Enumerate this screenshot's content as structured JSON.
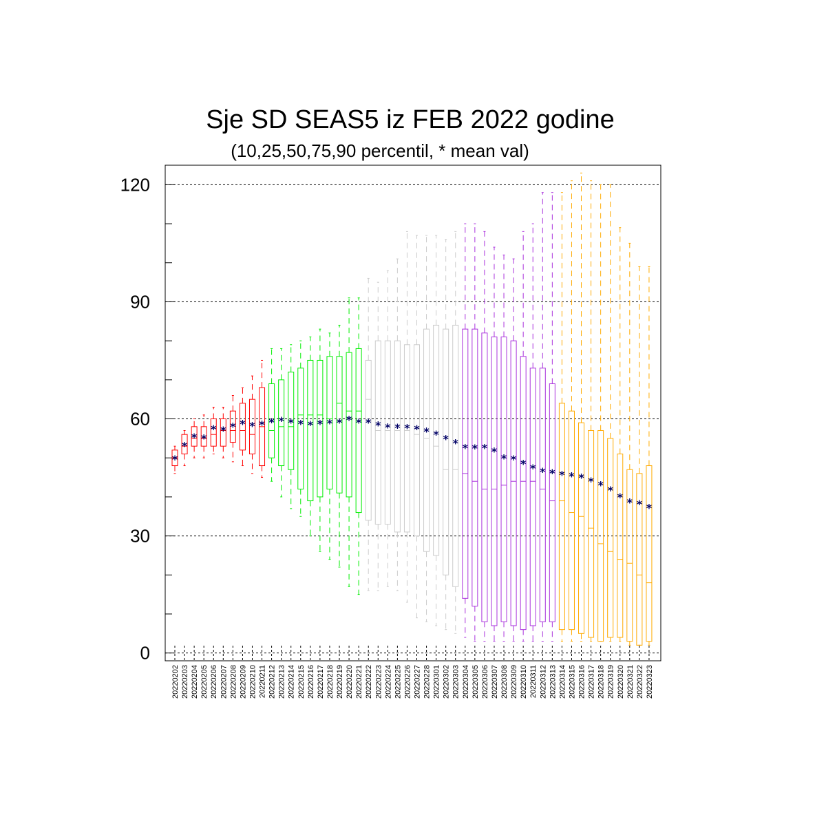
{
  "chart_data": {
    "type": "boxplot",
    "title": "Sje SD SEAS5 iz FEB 2022 godine",
    "subtitle": "(10,25,50,75,90 percentil, * mean val)",
    "xlabel": "",
    "ylabel": "",
    "ylim": [
      -2,
      125
    ],
    "yticks": [
      0,
      30,
      60,
      90,
      120
    ],
    "grid": "horizontal dashed at y ticks",
    "mean_marker_color": "#000066",
    "series_colors": [
      "#ff0000",
      "#00ee00",
      "#cccccc",
      "#aa33dd",
      "#ffaa00"
    ],
    "categories": [
      "20220202",
      "20220203",
      "20220204",
      "20220205",
      "20220206",
      "20220207",
      "20220208",
      "20220209",
      "20220210",
      "20220211",
      "20220212",
      "20220213",
      "20220214",
      "20220215",
      "20220216",
      "20220217",
      "20220218",
      "20220219",
      "20220220",
      "20220221",
      "20220222",
      "20220223",
      "20220224",
      "20220225",
      "20220226",
      "20220227",
      "20220228",
      "20220301",
      "20220302",
      "20220303",
      "20220304",
      "20220305",
      "20220306",
      "20220307",
      "20220308",
      "20220309",
      "20220310",
      "20220311",
      "20220312",
      "20220313",
      "20220314",
      "20220315",
      "20220316",
      "20220317",
      "20220318",
      "20220319",
      "20220320",
      "20220321",
      "20220322",
      "20220323"
    ],
    "color_index": [
      0,
      0,
      0,
      0,
      0,
      0,
      0,
      0,
      0,
      0,
      1,
      1,
      1,
      1,
      1,
      1,
      1,
      1,
      1,
      1,
      2,
      2,
      2,
      2,
      2,
      2,
      2,
      2,
      2,
      2,
      3,
      3,
      3,
      3,
      3,
      3,
      3,
      3,
      3,
      3,
      4,
      4,
      4,
      4,
      4,
      4,
      4,
      4,
      4,
      4
    ],
    "p10": [
      46,
      48,
      50,
      50,
      51,
      50,
      49,
      48,
      46,
      45,
      44,
      40,
      37,
      35,
      30,
      26,
      24,
      22,
      17,
      15,
      16,
      16,
      17,
      16,
      13,
      9,
      8,
      7,
      6,
      5,
      4,
      3,
      3,
      3,
      3,
      3,
      3,
      3,
      3,
      3,
      3,
      3,
      3,
      3,
      3,
      3,
      3,
      2,
      2,
      2
    ],
    "p25": [
      48,
      51,
      53,
      53,
      53,
      53,
      54,
      52,
      51,
      48,
      50,
      48,
      47,
      42,
      39,
      40,
      42,
      41,
      40,
      36,
      34,
      33,
      33,
      31,
      31,
      30,
      26,
      25,
      20,
      17,
      14,
      12,
      8,
      7,
      8,
      7,
      6,
      7,
      8,
      8,
      6,
      6,
      5,
      4,
      3,
      4,
      4,
      3,
      2,
      3
    ],
    "p50": [
      50,
      53,
      55,
      55,
      56,
      57,
      57,
      57,
      56,
      58,
      57,
      58,
      58,
      61,
      61,
      61,
      60,
      64,
      62,
      62,
      65,
      57,
      57,
      57,
      57,
      56,
      55,
      53,
      47,
      47,
      46,
      44,
      42,
      42,
      43,
      44,
      44,
      44,
      42,
      39,
      39,
      36,
      35,
      32,
      28,
      26,
      24,
      23,
      20,
      18
    ],
    "p75": [
      52,
      56,
      58,
      58,
      60,
      60,
      62,
      64,
      65,
      68,
      69,
      70,
      72,
      73,
      75,
      75,
      76,
      76,
      77,
      78,
      75,
      80,
      80,
      80,
      79,
      79,
      83,
      84,
      83,
      84,
      83,
      83,
      82,
      81,
      81,
      80,
      76,
      73,
      73,
      69,
      64,
      62,
      59,
      57,
      57,
      55,
      51,
      47,
      46,
      48
    ],
    "p90": [
      53,
      57,
      60,
      61,
      63,
      63,
      66,
      68,
      71,
      75,
      78,
      78,
      79,
      80,
      81,
      83,
      82,
      84,
      91,
      91,
      96,
      95,
      98,
      101,
      108,
      107,
      107,
      107,
      106,
      108,
      110,
      110,
      108,
      104,
      102,
      101,
      108,
      110,
      118,
      118,
      118,
      121,
      123,
      121,
      120,
      120,
      109,
      105,
      99,
      99
    ],
    "mean": [
      49.9,
      53.3,
      55.5,
      55.2,
      57.6,
      57.3,
      58.2,
      58.9,
      58.4,
      58.8,
      59.4,
      59.7,
      59.3,
      58.9,
      58.7,
      58.9,
      59.1,
      59.3,
      60.0,
      59.3,
      59.3,
      58.6,
      58.1,
      58.0,
      57.9,
      57.6,
      57.0,
      56.2,
      55.1,
      54.0,
      52.8,
      52.7,
      52.8,
      51.9,
      50.1,
      49.9,
      48.7,
      47.6,
      46.7,
      46.3,
      45.9,
      45.5,
      45.2,
      44.2,
      43.2,
      41.9,
      40.2,
      38.8,
      38.4,
      37.4
    ]
  }
}
